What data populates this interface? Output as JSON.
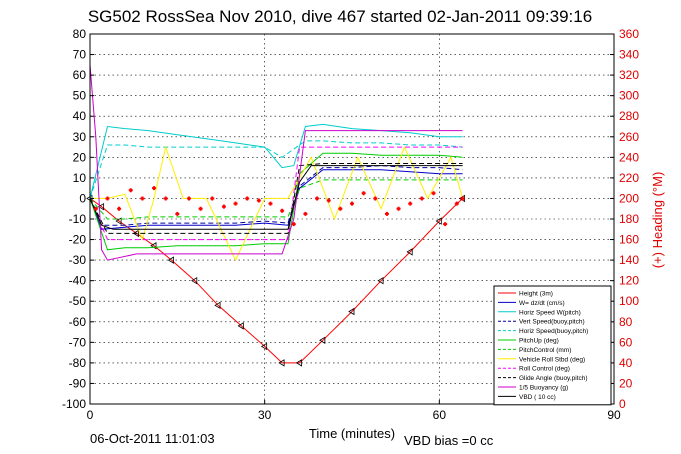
{
  "chart_data": {
    "type": "line",
    "title": "SG502 RossSea Nov 2010, dive 467 started 02-Jan-2011 09:39:16",
    "xlabel": "Time (minutes)",
    "ylabel": "",
    "y2label": "(+) Heading (°M)",
    "xlim": [
      0,
      90
    ],
    "ylim": [
      -100,
      80
    ],
    "y2lim": [
      0,
      360
    ],
    "xticks": [
      "0",
      "30",
      "60",
      "90"
    ],
    "yticks": [
      "-100",
      "-90",
      "-80",
      "-70",
      "-60",
      "-50",
      "-40",
      "-30",
      "-20",
      "-10",
      "0",
      "10",
      "20",
      "30",
      "40",
      "50",
      "60",
      "70",
      "80"
    ],
    "y2ticks": [
      "0",
      "20",
      "40",
      "60",
      "80",
      "100",
      "120",
      "140",
      "160",
      "180",
      "200",
      "220",
      "240",
      "260",
      "280",
      "300",
      "320",
      "340",
      "360"
    ],
    "grid": true,
    "legend_position": "bottom-right",
    "series": [
      {
        "name": "Height (3m)",
        "color": "#ff0000",
        "style": "solid",
        "x": [
          0,
          2,
          5,
          8,
          11,
          14,
          18,
          22,
          26,
          30,
          33,
          36,
          40,
          45,
          50,
          55,
          60,
          64
        ],
        "y": [
          0,
          -4,
          -11,
          -17,
          -23,
          -30,
          -40,
          -52,
          -62,
          -72,
          -80,
          -80,
          -69,
          -55,
          -40,
          -26,
          -11,
          0
        ]
      },
      {
        "name": "W= dz/dt (cm/s)",
        "color": "#0000cc",
        "style": "solid",
        "x": [
          0,
          2,
          6,
          10,
          15,
          20,
          25,
          30,
          34,
          36,
          40,
          45,
          50,
          55,
          60,
          64
        ],
        "y": [
          0,
          -15,
          -14,
          -13,
          -13,
          -13,
          -13,
          -12,
          -13,
          5,
          14,
          14,
          14,
          13,
          12,
          12
        ]
      },
      {
        "name": "Horiz Speed W(pitch)",
        "color": "#00cccc",
        "style": "solid",
        "x": [
          0,
          3,
          6,
          10,
          15,
          20,
          25,
          30,
          33,
          35,
          37,
          40,
          45,
          50,
          55,
          60,
          64
        ],
        "y": [
          0,
          35,
          34,
          33,
          31,
          29,
          27,
          25,
          15,
          16,
          35,
          36,
          34,
          33,
          32,
          30,
          30
        ]
      },
      {
        "name": "Vert Speed(buoy,pitch)",
        "color": "#000099",
        "style": "dash",
        "x": [
          0,
          2,
          6,
          10,
          15,
          20,
          25,
          30,
          34,
          36,
          40,
          45,
          50,
          55,
          60,
          64
        ],
        "y": [
          0,
          -13,
          -13,
          -12,
          -12,
          -12,
          -12,
          -11,
          -12,
          6,
          15,
          15,
          16,
          15,
          15,
          14
        ]
      },
      {
        "name": "Horiz Speed(buoy,pitch)",
        "color": "#00cccc",
        "style": "dash",
        "x": [
          0,
          3,
          6,
          10,
          15,
          20,
          25,
          30,
          33,
          37,
          40,
          45,
          50,
          55,
          60,
          64
        ],
        "y": [
          0,
          26,
          26,
          25,
          25,
          25,
          25,
          25,
          20,
          28,
          28,
          27,
          27,
          26,
          26,
          25
        ]
      },
      {
        "name": "PitchUp (deg)",
        "color": "#00cc00",
        "style": "solid",
        "x": [
          0,
          3,
          6,
          10,
          15,
          20,
          25,
          30,
          34,
          36,
          40,
          45,
          50,
          55,
          60,
          64
        ],
        "y": [
          0,
          -25,
          -24,
          -24,
          -23,
          -23,
          -23,
          -22,
          -22,
          12,
          22,
          22,
          21,
          21,
          21,
          20
        ]
      },
      {
        "name": "PitchControl (mm)",
        "color": "#00cc00",
        "style": "dash",
        "x": [
          0,
          3,
          6,
          10,
          15,
          20,
          25,
          30,
          34,
          36,
          40,
          45,
          50,
          55,
          60,
          64
        ],
        "y": [
          0,
          -10,
          -10,
          -9,
          -9,
          -9,
          -9,
          -9,
          -9,
          5,
          9,
          9,
          9,
          9,
          9,
          9
        ]
      },
      {
        "name": "Vehicle Roll Stbd (deg)",
        "color": "#ffee00",
        "style": "solid",
        "x": [
          0,
          3,
          6,
          9,
          11,
          13,
          16,
          20,
          25,
          30,
          34,
          38,
          42,
          46,
          50,
          54,
          58,
          62,
          64
        ],
        "y": [
          0,
          0,
          2,
          -20,
          0,
          25,
          0,
          0,
          -30,
          0,
          0,
          20,
          -10,
          20,
          -5,
          25,
          0,
          20,
          0
        ]
      },
      {
        "name": "Roll Control (deg)",
        "color": "#ff00ff",
        "style": "dash",
        "x": [
          0,
          3,
          8,
          15,
          20,
          25,
          30,
          34,
          36,
          40,
          45,
          50,
          55,
          60,
          64
        ],
        "y": [
          0,
          -20,
          -20,
          -20,
          -20,
          -20,
          -20,
          -20,
          25,
          25,
          25,
          25,
          25,
          25,
          25
        ]
      },
      {
        "name": "Glide Angle (buoy,pitch)",
        "color": "#000000",
        "style": "dash",
        "x": [
          0,
          3,
          8,
          15,
          20,
          25,
          30,
          34,
          36,
          40,
          45,
          50,
          55,
          60,
          64
        ],
        "y": [
          0,
          -17,
          -17,
          -17,
          -17,
          -17,
          -17,
          -17,
          16,
          17,
          17,
          17,
          17,
          17,
          17
        ]
      },
      {
        "name": "1/5 Buoyancy (g)",
        "color": "#cc00cc",
        "style": "solid",
        "x": [
          0,
          1,
          2,
          3,
          8,
          15,
          20,
          25,
          30,
          33,
          35,
          37,
          40,
          50,
          60,
          64
        ],
        "y": [
          65,
          30,
          -25,
          -30,
          -27,
          -27,
          -27,
          -27,
          -27,
          -27,
          -10,
          33,
          33,
          33,
          33,
          33
        ]
      },
      {
        "name": "VBD ( 10 cc)",
        "color": "#000000",
        "style": "solid",
        "x": [
          0,
          2,
          4,
          8,
          15,
          20,
          25,
          30,
          34,
          36,
          38,
          40,
          50,
          60,
          64
        ],
        "y": [
          0,
          -13,
          -15,
          -15,
          -15,
          -15,
          -15,
          -15,
          -15,
          8,
          16,
          16,
          16,
          16,
          16
        ]
      },
      {
        "name": "Heading",
        "color": "#ff0000",
        "style": "markers",
        "axis": "right",
        "x": [
          1,
          3,
          5,
          7,
          9,
          11,
          13,
          15,
          17,
          19,
          21,
          23,
          25,
          27,
          29,
          31,
          33,
          35,
          37,
          39,
          41,
          43,
          45,
          47,
          49,
          51,
          53,
          55,
          57,
          59,
          61,
          63,
          64
        ],
        "y": [
          190,
          200,
          190,
          208,
          200,
          210,
          200,
          185,
          200,
          190,
          200,
          192,
          195,
          200,
          198,
          195,
          188,
          175,
          185,
          200,
          198,
          190,
          195,
          205,
          200,
          185,
          190,
          195,
          200,
          205,
          175,
          195,
          200
        ]
      }
    ]
  },
  "footer": {
    "timestamp": "06-Oct-2011 11:01:03",
    "vbd_bias": "VBD bias =0 cc"
  }
}
